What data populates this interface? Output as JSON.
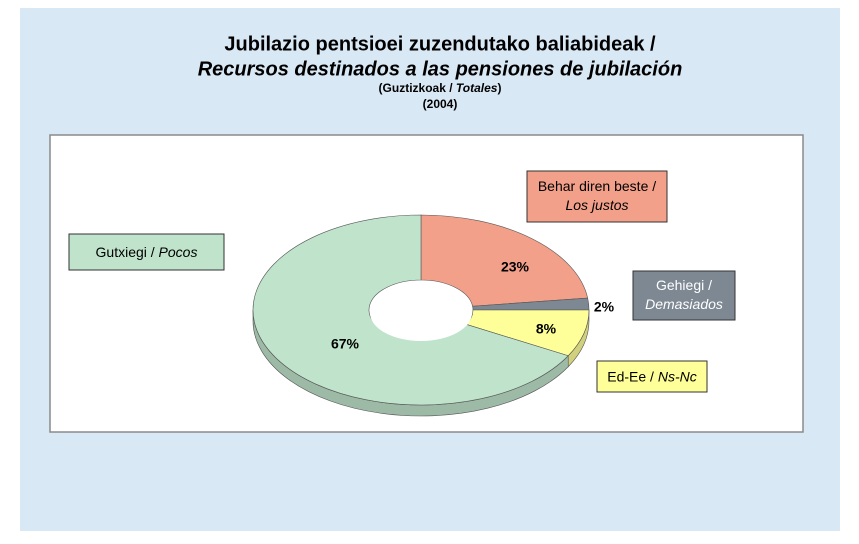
{
  "chart_data": {
    "type": "donut",
    "title": "Jubilazio pentsioei zuzendutako baliabideak  /",
    "subtitle": "Recursos destinados a las pensiones de jubilación",
    "note": [
      "(Guztizkoak / ",
      "Totales",
      ")"
    ],
    "year": "(2004)",
    "categories": [
      [
        "Behar diren beste /",
        "Los justos"
      ],
      [
        "Gehiegi /",
        "Demasiados"
      ],
      [
        "Ed-Ee / ",
        "Ns-Nc"
      ],
      [
        "Gutxiegi / ",
        "Pocos"
      ]
    ],
    "values": [
      23,
      2,
      8,
      67
    ],
    "value_labels": [
      "23%",
      "2%",
      "8%",
      "67%"
    ],
    "colors": [
      "#f2a08a",
      "#7d8893",
      "#ffff99",
      "#bfe3cb"
    ]
  }
}
